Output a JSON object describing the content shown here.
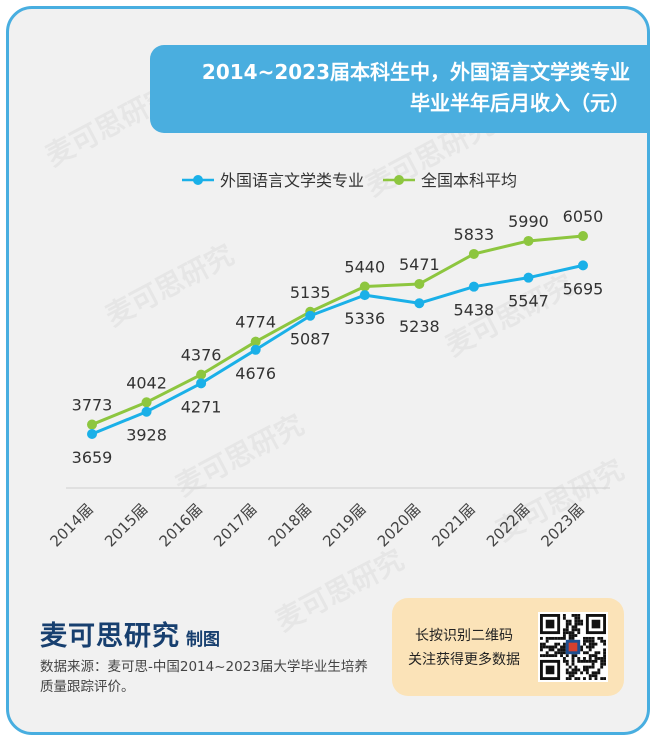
{
  "title": {
    "line1": "2014~2023届本科生中，外国语言文学类专业",
    "line2": "毕业半年后月收入（元）"
  },
  "chart_data": {
    "type": "line",
    "categories": [
      "2014届",
      "2015届",
      "2016届",
      "2017届",
      "2018届",
      "2019届",
      "2020届",
      "2021届",
      "2022届",
      "2023届"
    ],
    "series": [
      {
        "name": "外国语言文学类专业",
        "values": [
          3659,
          3928,
          4271,
          4676,
          5087,
          5336,
          5238,
          5438,
          5547,
          5695
        ],
        "color": "#1ab0e8",
        "label_position": "below"
      },
      {
        "name": "全国本科平均",
        "values": [
          3773,
          4042,
          4376,
          4774,
          5135,
          5440,
          5471,
          5833,
          5990,
          6050
        ],
        "color": "#8dc63f",
        "label_position": "above"
      }
    ],
    "legend_position": "top-center",
    "grid": false
  },
  "brand": {
    "name": "麦可思研究",
    "suffix": "制图"
  },
  "source_text": "数据来源：麦可思-中国2014~2023届大学毕业生培养质量跟踪评价。",
  "qr": {
    "line1": "长按识别二维码",
    "line2": "关注获得更多数据"
  },
  "watermark_text": "麦可思研究",
  "colors": {
    "accent": "#4aaedf",
    "brand": "#173f6f",
    "qr_bg": "#fbe3b8"
  }
}
